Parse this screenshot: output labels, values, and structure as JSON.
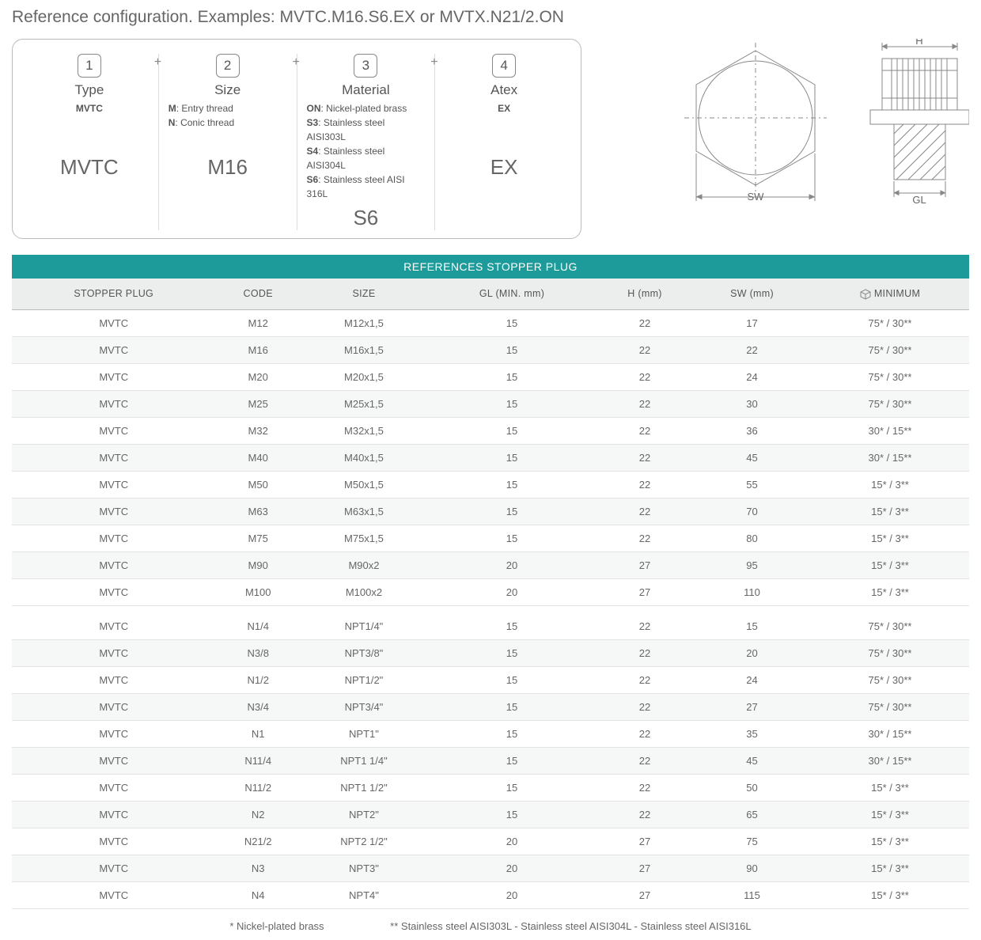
{
  "header": "Reference configuration. Examples: MVTC.M16.S6.EX or MVTX.N21/2.ON",
  "config": {
    "steps": [
      {
        "num": "1",
        "title": "Type",
        "sub_html": "<b>MVTC</b>",
        "sub_center": true,
        "value": "MVTC"
      },
      {
        "num": "2",
        "title": "Size",
        "sub_html": "<b>M</b>: Entry thread<br><b>N</b>: Conic thread",
        "sub_center": false,
        "value": "M16"
      },
      {
        "num": "3",
        "title": "Material",
        "sub_html": "<b>ON</b>: Nickel-plated brass<br><b>S3</b>: Stainless steel AISI303L<br><b>S4</b>: Stainless steel AISI304L<br><b>S6</b>: Stainless steel AISI 316L",
        "sub_center": false,
        "value": "S6"
      },
      {
        "num": "4",
        "title": "Atex",
        "sub_html": "<b>EX</b>",
        "sub_center": true,
        "value": "EX"
      }
    ]
  },
  "diagram": {
    "hex": {
      "sw_label": "SW"
    },
    "side": {
      "h_label": "H",
      "gl_label": "GL"
    }
  },
  "table": {
    "title": "REFERENCES STOPPER PLUG",
    "columns": [
      "STOPPER PLUG",
      "CODE",
      "SIZE",
      "GL (MIN. mm)",
      "H (mm)",
      "SW (mm)",
      "MINIMUM"
    ],
    "rows1": [
      [
        "MVTC",
        "M12",
        "M12x1,5",
        "15",
        "22",
        "17",
        "75* / 30**"
      ],
      [
        "MVTC",
        "M16",
        "M16x1,5",
        "15",
        "22",
        "22",
        "75* / 30**"
      ],
      [
        "MVTC",
        "M20",
        "M20x1,5",
        "15",
        "22",
        "24",
        "75* / 30**"
      ],
      [
        "MVTC",
        "M25",
        "M25x1,5",
        "15",
        "22",
        "30",
        "75* / 30**"
      ],
      [
        "MVTC",
        "M32",
        "M32x1,5",
        "15",
        "22",
        "36",
        "30* / 15**"
      ],
      [
        "MVTC",
        "M40",
        "M40x1,5",
        "15",
        "22",
        "45",
        "30* / 15**"
      ],
      [
        "MVTC",
        "M50",
        "M50x1,5",
        "15",
        "22",
        "55",
        "15* / 3**"
      ],
      [
        "MVTC",
        "M63",
        "M63x1,5",
        "15",
        "22",
        "70",
        "15* / 3**"
      ],
      [
        "MVTC",
        "M75",
        "M75x1,5",
        "15",
        "22",
        "80",
        "15* / 3**"
      ],
      [
        "MVTC",
        "M90",
        "M90x2",
        "20",
        "27",
        "95",
        "15* / 3**"
      ],
      [
        "MVTC",
        "M100",
        "M100x2",
        "20",
        "27",
        "110",
        "15* / 3**"
      ]
    ],
    "rows2": [
      [
        "MVTC",
        "N1/4",
        "NPT1/4\"",
        "15",
        "22",
        "15",
        "75* / 30**"
      ],
      [
        "MVTC",
        "N3/8",
        "NPT3/8\"",
        "15",
        "22",
        "20",
        "75* / 30**"
      ],
      [
        "MVTC",
        "N1/2",
        "NPT1/2\"",
        "15",
        "22",
        "24",
        "75* / 30**"
      ],
      [
        "MVTC",
        "N3/4",
        "NPT3/4\"",
        "15",
        "22",
        "27",
        "75* / 30**"
      ],
      [
        "MVTC",
        "N1",
        "NPT1\"",
        "15",
        "22",
        "35",
        "30* / 15**"
      ],
      [
        "MVTC",
        "N11/4",
        "NPT1 1/4\"",
        "15",
        "22",
        "45",
        "30* / 15**"
      ],
      [
        "MVTC",
        "N11/2",
        "NPT1 1/2\"",
        "15",
        "22",
        "50",
        "15* / 3**"
      ],
      [
        "MVTC",
        "N2",
        "NPT2\"",
        "15",
        "22",
        "65",
        "15* / 3**"
      ],
      [
        "MVTC",
        "N21/2",
        "NPT2 1/2\"",
        "20",
        "27",
        "75",
        "15* / 3**"
      ],
      [
        "MVTC",
        "N3",
        "NPT3\"",
        "20",
        "27",
        "90",
        "15* / 3**"
      ],
      [
        "MVTC",
        "N4",
        "NPT4\"",
        "20",
        "27",
        "115",
        "15* / 3**"
      ]
    ]
  },
  "footnote": {
    "a": "* Nickel-plated brass",
    "b": "** Stainless steel AISI303L - Stainless steel AISI304L - Stainless steel AISI316L"
  },
  "colors": {
    "teal": "#1d9b9b",
    "header_bg": "#eceded",
    "row_alt": "#f6f7f7",
    "border": "#bbb",
    "text": "#555"
  }
}
